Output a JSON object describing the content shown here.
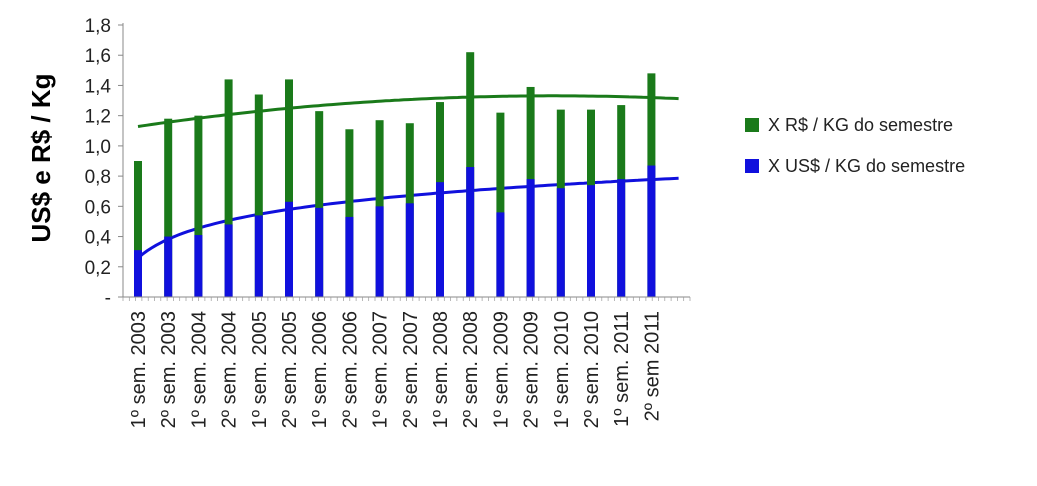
{
  "chart_data": {
    "type": "bar",
    "title": "",
    "xlabel": "",
    "ylabel": "US$ e R$ / Kg",
    "ylim": [
      0,
      1.8
    ],
    "yticks": [
      "-",
      "0,2",
      "0,4",
      "0,6",
      "0,8",
      "1,0",
      "1,2",
      "1,4",
      "1,6",
      "1,8"
    ],
    "ytick_values": [
      0,
      0.2,
      0.4,
      0.6,
      0.8,
      1.0,
      1.2,
      1.4,
      1.6,
      1.8
    ],
    "categories": [
      "1º sem. 2003",
      "2º sem. 2003",
      "1º sem. 2004",
      "2º sem. 2004",
      "1º sem. 2005",
      "2º sem. 2005",
      "1º sem. 2006",
      "2º sem. 2006",
      "1º sem. 2007",
      "2º sem. 2007",
      "1º sem. 2008",
      "2º sem. 2008",
      "1º sem. 2009",
      "2º sem. 2009",
      "1º sem. 2010",
      "2º sem. 2010",
      "1º sem. 2011",
      "2º sem 2011"
    ],
    "series": [
      {
        "name": "X R$ / KG do semestre",
        "color": "#1a7a1a",
        "values": [
          0.9,
          1.18,
          1.2,
          1.44,
          1.34,
          1.44,
          1.23,
          1.11,
          1.17,
          1.15,
          1.29,
          1.62,
          1.22,
          1.39,
          1.24,
          1.24,
          1.27,
          1.48
        ]
      },
      {
        "name": "X US$ / KG do semestre",
        "color": "#1010dd",
        "values": [
          0.31,
          0.4,
          0.41,
          0.48,
          0.54,
          0.63,
          0.59,
          0.53,
          0.6,
          0.62,
          0.76,
          0.86,
          0.56,
          0.78,
          0.72,
          0.74,
          0.78,
          0.87
        ]
      }
    ],
    "trendlines": [
      {
        "series": "X R$ / KG do semestre",
        "type": "polynomial",
        "color": "#1a7a1a"
      },
      {
        "series": "X US$ / KG do semestre",
        "type": "logarithmic",
        "color": "#1010dd"
      }
    ],
    "grid": false,
    "legend_position": "right"
  }
}
